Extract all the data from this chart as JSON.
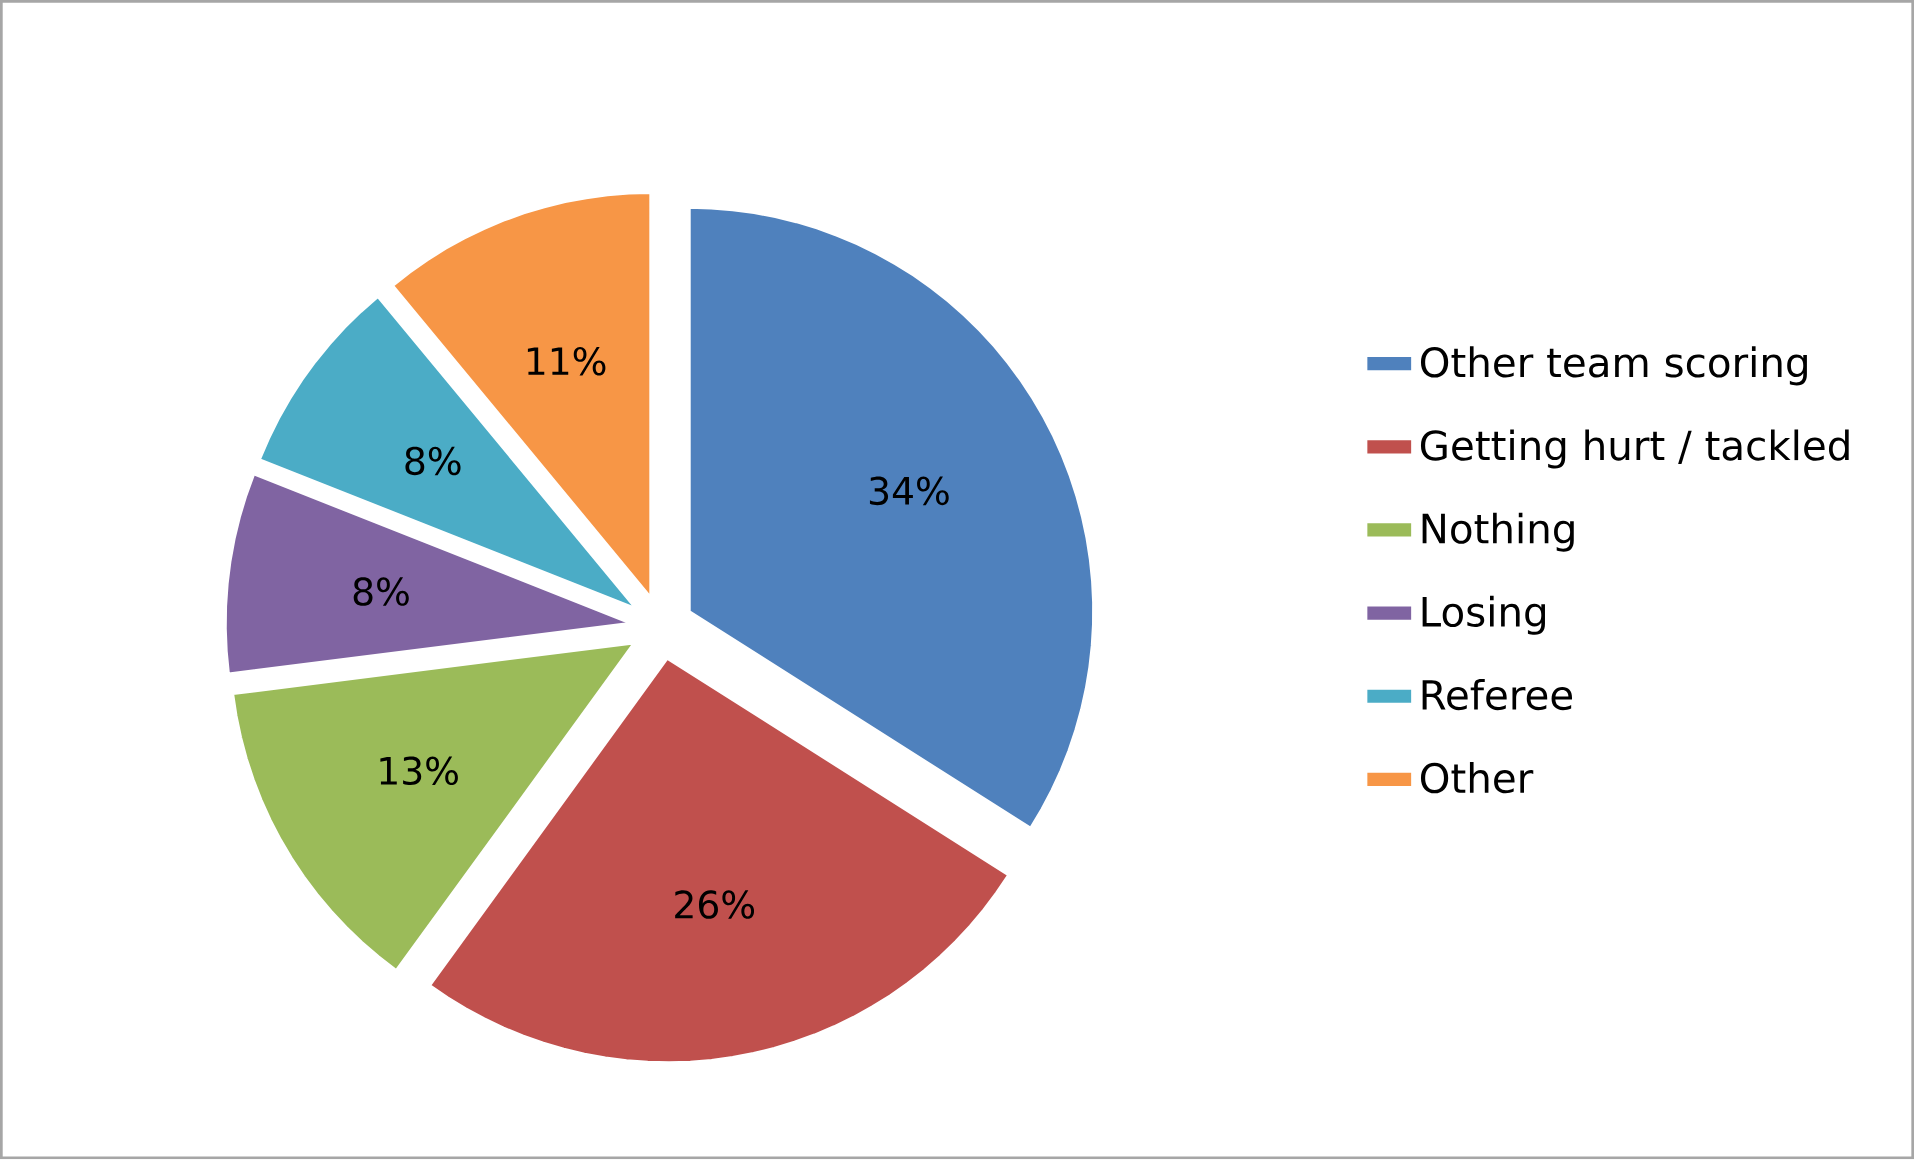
{
  "chart_data": {
    "type": "pie",
    "categories": [
      "Other team scoring",
      "Getting hurt / tackled",
      "Nothing",
      "Losing",
      "Referee",
      "Other"
    ],
    "values": [
      34,
      26,
      13,
      8,
      8,
      11
    ],
    "value_labels": [
      "34%",
      "26%",
      "13%",
      "8%",
      "8%",
      "11%"
    ],
    "colors": [
      "#4f81bd",
      "#c0504d",
      "#9bbb59",
      "#8064a2",
      "#4bacc6",
      "#f79646"
    ],
    "legend": "right"
  }
}
